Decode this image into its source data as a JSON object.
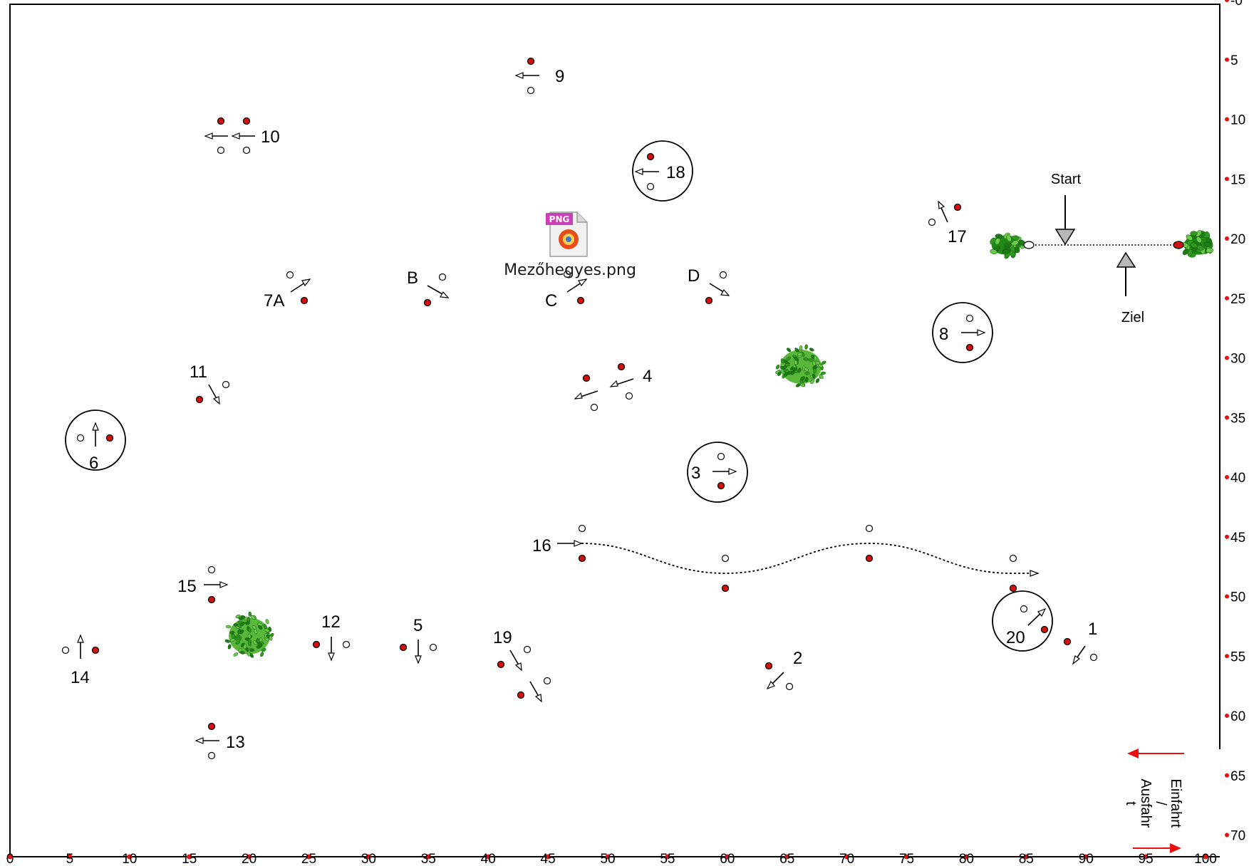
{
  "axes": {
    "x_ticks": [
      "0",
      "5",
      "10",
      "15",
      "20",
      "25",
      "30",
      "35",
      "40",
      "45",
      "50",
      "55",
      "60",
      "65",
      "70",
      "75",
      "80",
      "85",
      "90",
      "95",
      "100"
    ],
    "y_ticks": [
      "-0",
      "5",
      "10",
      "15",
      "20",
      "25",
      "30",
      "35",
      "40",
      "45",
      "50",
      "55",
      "60",
      "65",
      "70"
    ]
  },
  "desktop_icon": {
    "badge": "PNG",
    "label": "Mezőhegyes.png"
  },
  "markers": {
    "start": "Start",
    "ziel": "Ziel",
    "entry_exit": [
      "Einfahrt",
      "/",
      "Ausfahr",
      "t"
    ]
  },
  "colors": {
    "red_post": "#d11111",
    "white_post": "#ffffff",
    "hedge_green": "#2f9a1f",
    "axis_red": "#e81010",
    "arrow_fill": "#b8b8b8"
  },
  "obstacles": [
    {
      "label": "1",
      "x": 91.5,
      "y": 54.5,
      "circle": false
    },
    {
      "label": "2",
      "x": 67.0,
      "y": 56.5,
      "circle": false
    },
    {
      "label": "3",
      "x": 59.0,
      "y": 39.5,
      "circle": true
    },
    {
      "label": "4",
      "x": 48.5,
      "y": 33.0,
      "circle": false
    },
    {
      "label": "5",
      "x": 34.0,
      "y": 54.3,
      "circle": false
    },
    {
      "label": "6",
      "x": 7.0,
      "y": 37.0,
      "circle": true
    },
    {
      "label": "7A",
      "x": 24.0,
      "y": 24.5,
      "circle": false
    },
    {
      "label": "8",
      "x": 80.0,
      "y": 28.5,
      "circle": true
    },
    {
      "label": "9",
      "x": 43.5,
      "y": 6.0,
      "circle": false
    },
    {
      "label": "10",
      "x": 19.0,
      "y": 11.5,
      "circle": false
    },
    {
      "label": "11",
      "x": 17.0,
      "y": 33.0,
      "circle": false
    },
    {
      "label": "12",
      "x": 26.5,
      "y": 54.5,
      "circle": false
    },
    {
      "label": "13",
      "x": 16.5,
      "y": 62.0,
      "circle": false
    },
    {
      "label": "14",
      "x": 6.0,
      "y": 54.5,
      "circle": false
    },
    {
      "label": "15",
      "x": 16.5,
      "y": 49.5,
      "circle": false
    },
    {
      "label": "16",
      "x": 46.0,
      "y": 46.0,
      "circle": false
    },
    {
      "label": "17",
      "x": 78.5,
      "y": 19.0,
      "circle": false
    },
    {
      "label": "18",
      "x": 54.5,
      "y": 14.5,
      "circle": true
    },
    {
      "label": "19",
      "x": 43.0,
      "y": 57.0,
      "circle": false
    },
    {
      "label": "20",
      "x": 85.0,
      "y": 52.5,
      "circle": true
    },
    {
      "label": "B",
      "x": 35.5,
      "y": 24.0,
      "circle": false
    },
    {
      "label": "C",
      "x": 47.0,
      "y": 24.5,
      "circle": false
    },
    {
      "label": "D",
      "x": 59.0,
      "y": 24.0,
      "circle": false
    }
  ],
  "hedges": [
    {
      "x": 66.0,
      "y": 30.5
    },
    {
      "x": 20.0,
      "y": 54.0
    },
    {
      "x": 84.0,
      "y": 20.5
    },
    {
      "x": 98.0,
      "y": 20.5
    }
  ]
}
